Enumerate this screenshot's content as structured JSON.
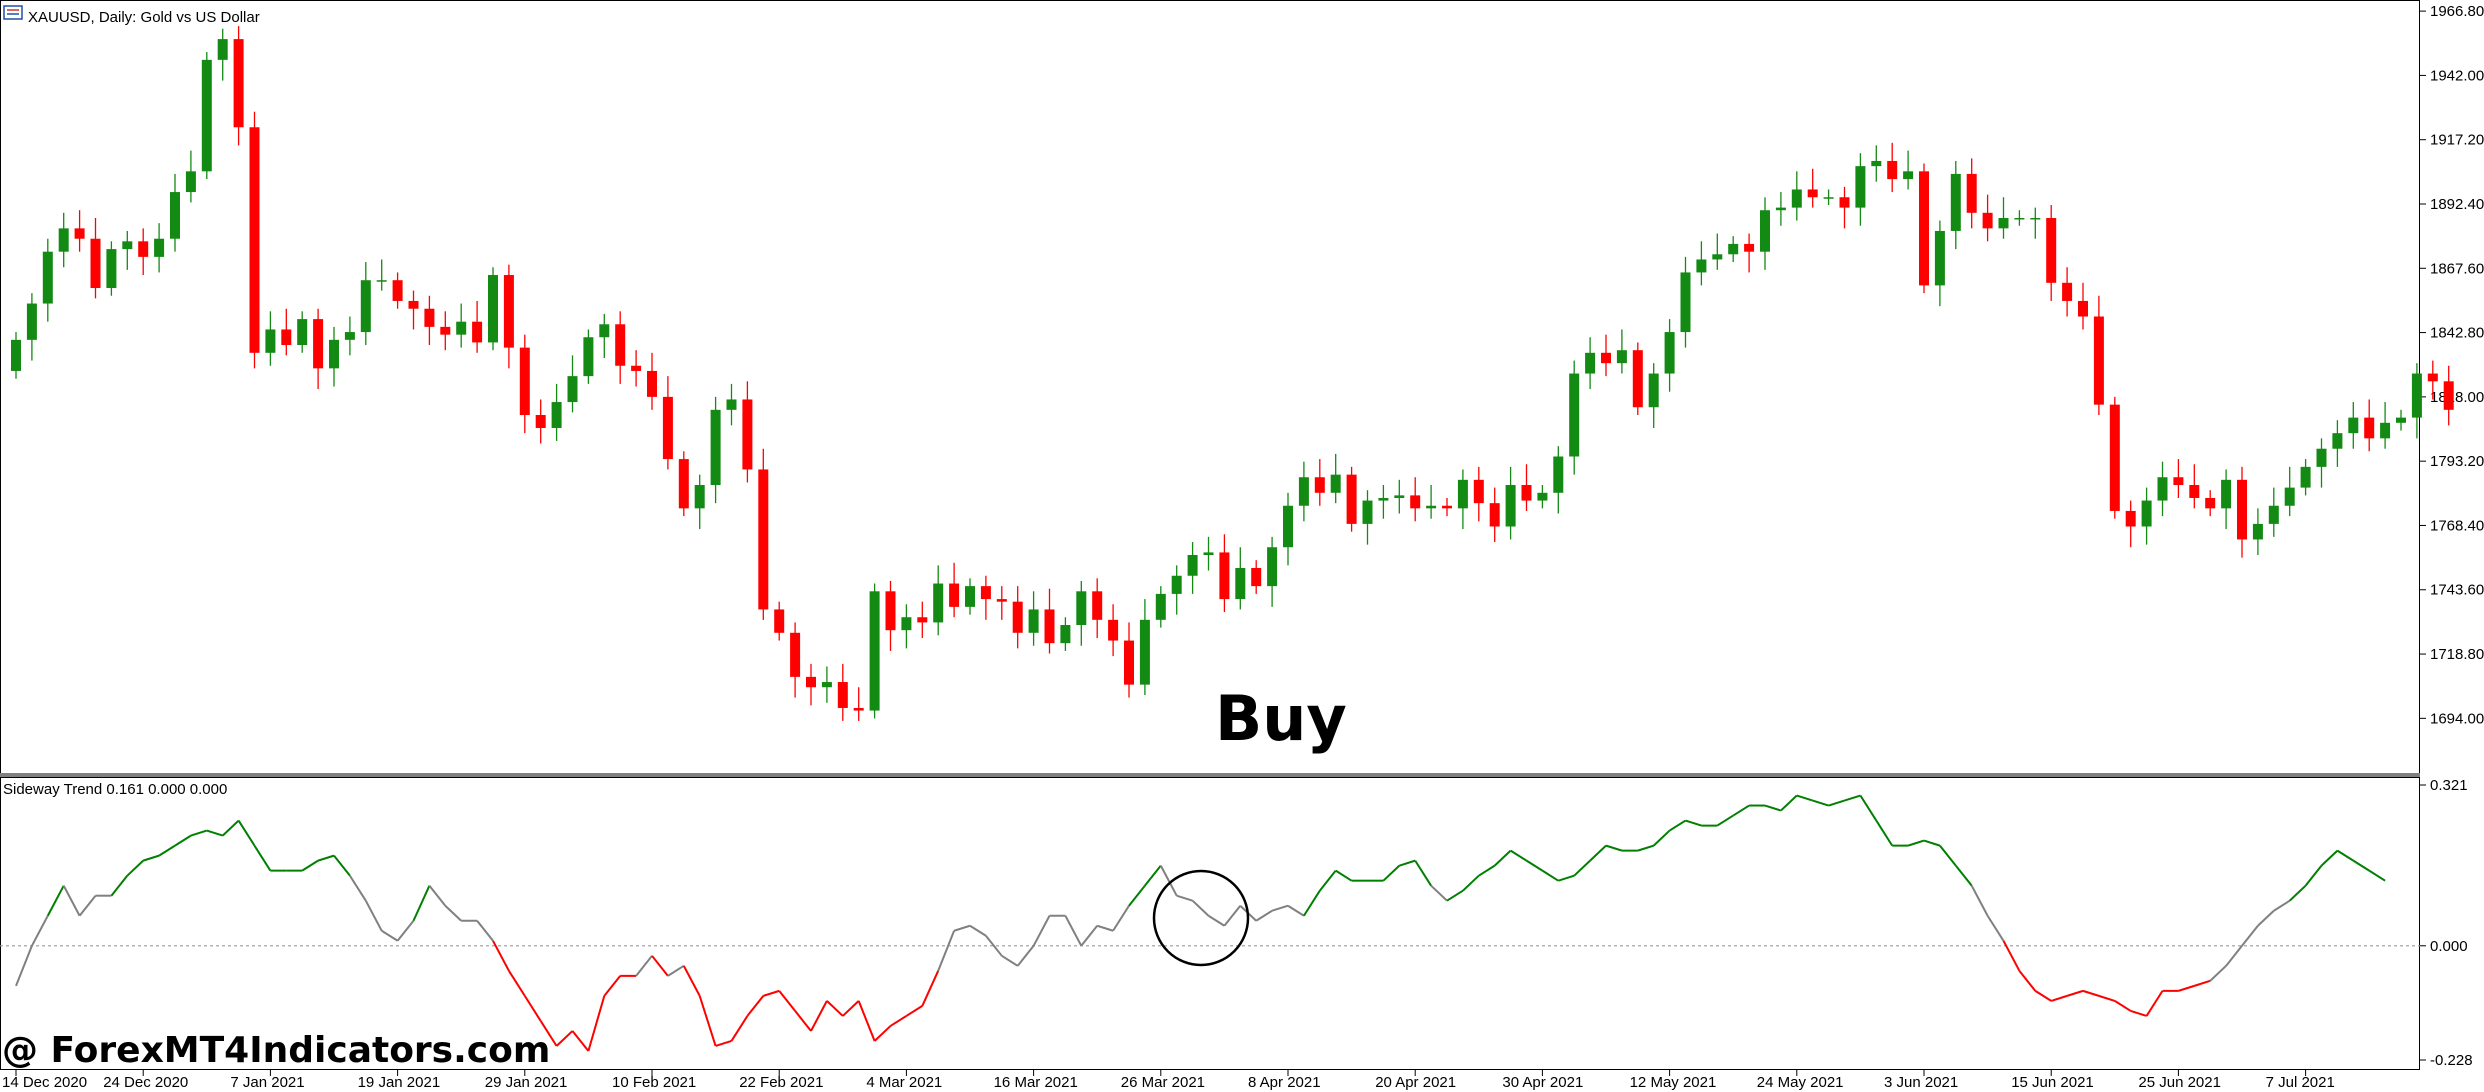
{
  "header": {
    "symbol_title": "XAUUSD, Daily:  Gold vs US Dollar"
  },
  "indicator": {
    "title": "Sideway Trend 0.161 0.000 0.000"
  },
  "annotation": {
    "buy_label": "Buy"
  },
  "watermark": {
    "text": "@ ForexMT4Indicators.com"
  },
  "colors": {
    "bull": "#138a13",
    "bear": "#ff0000",
    "neutral": "#808080",
    "up": "#008000",
    "down": "#ff0000"
  },
  "chart_data": [
    {
      "type": "candlestick",
      "ylim": [
        1676,
        1968
      ],
      "price_ticks": [
        "1966.80",
        "1942.00",
        "1917.20",
        "1892.40",
        "1867.60",
        "1842.80",
        "1818.00",
        "1793.20",
        "1768.40",
        "1743.60",
        "1718.80",
        "1694.00"
      ],
      "date_labels": [
        {
          "label": "14 Dec 2020",
          "index": 0
        },
        {
          "label": "24 Dec 2020",
          "index": 8
        },
        {
          "label": "7 Jan 2021",
          "index": 16
        },
        {
          "label": "19 Jan 2021",
          "index": 24
        },
        {
          "label": "29 Jan 2021",
          "index": 32
        },
        {
          "label": "10 Feb 2021",
          "index": 40
        },
        {
          "label": "22 Feb 2021",
          "index": 48
        },
        {
          "label": "4 Mar 2021",
          "index": 56
        },
        {
          "label": "16 Mar 2021",
          "index": 64
        },
        {
          "label": "26 Mar 2021",
          "index": 72
        },
        {
          "label": "8 Apr 2021",
          "index": 80
        },
        {
          "label": "20 Apr 2021",
          "index": 88
        },
        {
          "label": "30 Apr 2021",
          "index": 96
        },
        {
          "label": "12 May 2021",
          "index": 104
        },
        {
          "label": "24 May 2021",
          "index": 112
        },
        {
          "label": "3 Jun 2021",
          "index": 120
        },
        {
          "label": "15 Jun 2021",
          "index": 128
        },
        {
          "label": "25 Jun 2021",
          "index": 136
        },
        {
          "label": "7 Jul 2021",
          "index": 144
        }
      ],
      "closes": [
        1840,
        1854,
        1874,
        1883,
        1879,
        1860,
        1875,
        1878,
        1872,
        1879,
        1897,
        1905,
        1948,
        1956,
        1922,
        1835,
        1844,
        1838,
        1848,
        1829,
        1840,
        1843,
        1863,
        1863,
        1855,
        1852,
        1845,
        1842,
        1847,
        1839,
        1865,
        1837,
        1811,
        1806,
        1816,
        1826,
        1841,
        1846,
        1830,
        1828,
        1818,
        1794,
        1775,
        1784,
        1813,
        1817,
        1790,
        1736,
        1727,
        1710,
        1706,
        1708,
        1698,
        1697,
        1743,
        1728,
        1733,
        1731,
        1746,
        1737,
        1745,
        1740,
        1739,
        1727,
        1736,
        1723,
        1730,
        1743,
        1732,
        1724,
        1707,
        1732,
        1742,
        1749,
        1757,
        1758,
        1740,
        1752,
        1745,
        1760,
        1776,
        1787,
        1781,
        1788,
        1769,
        1778,
        1779,
        1780,
        1775,
        1776,
        1775,
        1786,
        1777,
        1768,
        1784,
        1778,
        1781,
        1795,
        1827,
        1835,
        1831,
        1836,
        1814,
        1827,
        1843,
        1866,
        1871,
        1873,
        1877,
        1874,
        1890,
        1891,
        1898,
        1895,
        1895,
        1891,
        1907,
        1909,
        1902,
        1905,
        1861,
        1882,
        1904,
        1889,
        1883,
        1887,
        1887,
        1887,
        1862,
        1855,
        1849,
        1815,
        1774,
        1768,
        1778,
        1787,
        1784,
        1779,
        1775,
        1786,
        1763,
        1769,
        1776,
        1783,
        1791,
        1798,
        1804,
        1810,
        1802,
        1808,
        1810,
        1827,
        1824,
        1813
      ],
      "annotations": [
        "Buy"
      ]
    },
    {
      "type": "line",
      "title": "Sideway Trend 0.161 0.000 0.000",
      "ylim": [
        -0.228,
        0.321
      ],
      "ticks": [
        "0.321",
        "0.000",
        "-0.228"
      ],
      "zero_line": 0.0,
      "values": [
        -0.08,
        0.0,
        0.06,
        0.12,
        0.06,
        0.1,
        0.1,
        0.14,
        0.17,
        0.18,
        0.2,
        0.22,
        0.23,
        0.22,
        0.25,
        0.2,
        0.15,
        0.15,
        0.15,
        0.17,
        0.18,
        0.14,
        0.09,
        0.03,
        0.01,
        0.05,
        0.12,
        0.08,
        0.05,
        0.05,
        0.01,
        -0.05,
        -0.1,
        -0.15,
        -0.2,
        -0.17,
        -0.21,
        -0.1,
        -0.06,
        -0.06,
        -0.02,
        -0.06,
        -0.04,
        -0.1,
        -0.2,
        -0.19,
        -0.14,
        -0.1,
        -0.09,
        -0.13,
        -0.17,
        -0.11,
        -0.14,
        -0.11,
        -0.19,
        -0.16,
        -0.14,
        -0.12,
        -0.05,
        0.03,
        0.04,
        0.02,
        -0.02,
        -0.04,
        0.0,
        0.06,
        0.06,
        0.0,
        0.04,
        0.03,
        0.08,
        0.12,
        0.16,
        0.1,
        0.09,
        0.06,
        0.04,
        0.08,
        0.05,
        0.07,
        0.08,
        0.06,
        0.11,
        0.15,
        0.13,
        0.13,
        0.13,
        0.16,
        0.17,
        0.12,
        0.09,
        0.11,
        0.14,
        0.16,
        0.19,
        0.17,
        0.15,
        0.13,
        0.14,
        0.17,
        0.2,
        0.19,
        0.19,
        0.2,
        0.23,
        0.25,
        0.24,
        0.24,
        0.26,
        0.28,
        0.28,
        0.27,
        0.3,
        0.29,
        0.28,
        0.29,
        0.3,
        0.25,
        0.2,
        0.2,
        0.21,
        0.2,
        0.16,
        0.12,
        0.06,
        0.01,
        -0.05,
        -0.09,
        -0.11,
        -0.1,
        -0.09,
        -0.1,
        -0.11,
        -0.13,
        -0.14,
        -0.09,
        -0.09,
        -0.08,
        -0.07,
        -0.04,
        0.0,
        0.04,
        0.07,
        0.09,
        0.12,
        0.16,
        0.19,
        0.17,
        0.15,
        0.13
      ]
    }
  ]
}
